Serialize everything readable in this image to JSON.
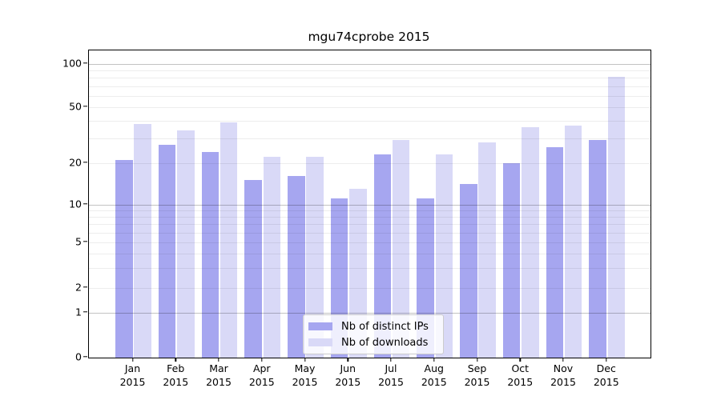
{
  "title": "mgu74cprobe 2015",
  "legend": {
    "items": [
      {
        "label": "Nb of distinct IPs",
        "color": "#a6a6f0"
      },
      {
        "label": "Nb of downloads",
        "color": "#d9d9f7"
      }
    ]
  },
  "y_axis": {
    "tick_labels": [
      "100",
      "50",
      "20",
      "10",
      "5",
      "2",
      "1",
      "0"
    ]
  },
  "x_axis": {
    "months": [
      "Jan",
      "Feb",
      "Mar",
      "Apr",
      "May",
      "Jun",
      "Jul",
      "Aug",
      "Sep",
      "Oct",
      "Nov",
      "Dec"
    ],
    "year": "2015"
  },
  "chart_data": {
    "type": "bar",
    "title": "mgu74cprobe 2015",
    "categories": [
      "Jan 2015",
      "Feb 2015",
      "Mar 2015",
      "Apr 2015",
      "May 2015",
      "Jun 2015",
      "Jul 2015",
      "Aug 2015",
      "Sep 2015",
      "Oct 2015",
      "Nov 2015",
      "Dec 2015"
    ],
    "series": [
      {
        "name": "Nb of distinct IPs",
        "color": "#a6a6f0",
        "values": [
          21,
          27,
          24,
          15,
          16,
          11,
          23,
          11,
          14,
          20,
          26,
          29
        ]
      },
      {
        "name": "Nb of downloads",
        "color": "#d9d9f7",
        "values": [
          38,
          34,
          39,
          22,
          22,
          13,
          29,
          23,
          28,
          36,
          37,
          81
        ]
      }
    ],
    "yscale": "symlog",
    "yticks": [
      0,
      1,
      2,
      5,
      10,
      20,
      50,
      100
    ],
    "major_gridlines": [
      1,
      10,
      100
    ],
    "minor_gridlines": [
      2,
      3,
      4,
      5,
      6,
      7,
      8,
      9,
      20,
      30,
      40,
      50,
      60,
      70,
      80,
      90
    ],
    "ylim": [
      0,
      115
    ],
    "grid": true,
    "legend_position": "lower center"
  }
}
